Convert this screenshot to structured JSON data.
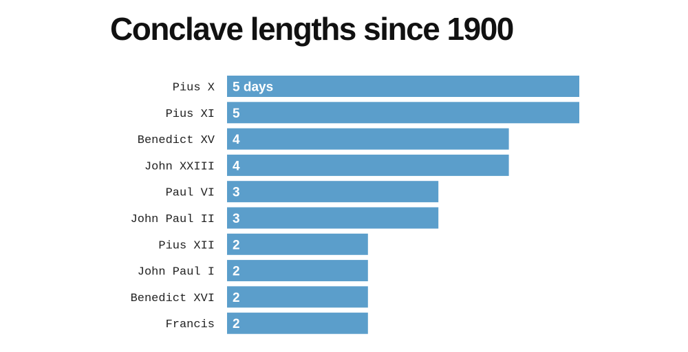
{
  "chart_data": {
    "type": "bar",
    "orientation": "horizontal",
    "title": "Conclave lengths since 1900",
    "categories": [
      "Pius X",
      "Pius XI",
      "Benedict XV",
      "John XXIII",
      "Paul VI",
      "John Paul II",
      "Pius XII",
      "John Paul I",
      "Benedict XVI",
      "Francis"
    ],
    "values": [
      5,
      5,
      4,
      4,
      3,
      3,
      2,
      2,
      2,
      2
    ],
    "value_labels": [
      "5 days",
      "5",
      "4",
      "4",
      "3",
      "3",
      "2",
      "2",
      "2",
      "2"
    ],
    "xlim": [
      0,
      5
    ],
    "grid": false,
    "bar_color": "#5b9ecb"
  }
}
